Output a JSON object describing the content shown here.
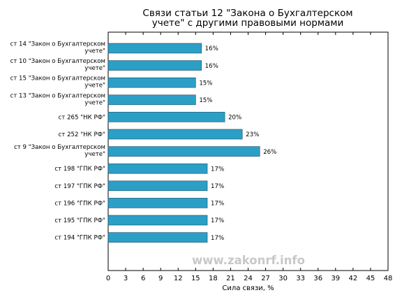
{
  "watermark": "www.zakonrf.info",
  "chart_data": {
    "type": "bar",
    "orientation": "horizontal",
    "title_lines": [
      "Связи статьи 12 \"Закона о Бухгалтерском",
      "учете\" с другими правовыми нормами"
    ],
    "xlabel": "Сила связи, %",
    "xlim": [
      0,
      48
    ],
    "xticks": [
      0,
      3,
      6,
      9,
      12,
      15,
      18,
      21,
      24,
      27,
      30,
      33,
      36,
      39,
      42,
      45,
      48
    ],
    "grid": false,
    "bar_color": "#2b9fc6",
    "categories": [
      [
        "ст 14 \"Закон о Бухгалтерском",
        "учете\""
      ],
      [
        "ст 10 \"Закон о Бухгалтерском",
        "учете\""
      ],
      [
        "ст 15 \"Закон о Бухгалтерском",
        "учете\""
      ],
      [
        "ст 13 \"Закон о Бухгалтерском",
        "учете\""
      ],
      [
        "ст 265 \"НК РФ\""
      ],
      [
        "ст 252 \"НК РФ\""
      ],
      [
        "ст 9 \"Закон о Бухгалтерском",
        "учете\""
      ],
      [
        "ст 198 \"ГПК РФ\""
      ],
      [
        "ст 197 \"ГПК РФ\""
      ],
      [
        "ст 196 \"ГПК РФ\""
      ],
      [
        "ст 195 \"ГПК РФ\""
      ],
      [
        "ст 194 \"ГПК РФ\""
      ]
    ],
    "values": [
      16,
      16,
      15,
      15,
      20,
      23,
      26,
      17,
      17,
      17,
      17,
      17
    ],
    "value_labels": [
      "16%",
      "16%",
      "15%",
      "15%",
      "20%",
      "23%",
      "26%",
      "17%",
      "17%",
      "17%",
      "17%",
      "17%"
    ]
  }
}
